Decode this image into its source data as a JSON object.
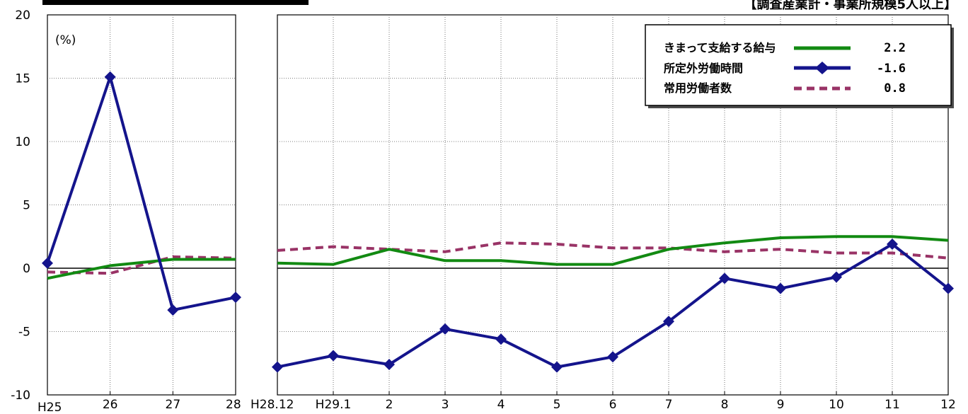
{
  "source_label": "【調査産業計・事業所規模5人以上】",
  "chart_data": {
    "type": "line",
    "unit_label": "(%)",
    "ylim": [
      -10,
      20
    ],
    "yticks": [
      "20",
      "15",
      "10",
      "5",
      "0",
      "-5",
      "-10"
    ],
    "grid": true,
    "legend_position": "top-right",
    "legend_values": [
      "2.2",
      "-1.6",
      "0.8"
    ],
    "colors": {
      "wages": "#128a12",
      "overtime": "#14148c",
      "employees": "#993366"
    },
    "panels": [
      {
        "categories": [
          "H25",
          "26",
          "27",
          "28"
        ],
        "series": [
          {
            "name": "きまって支給する給与",
            "values": [
              -0.8,
              0.2,
              0.7,
              0.7
            ]
          },
          {
            "name": "所定外労働時間",
            "values": [
              0.4,
              15.1,
              -3.3,
              -2.3
            ]
          },
          {
            "name": "常用労働者数",
            "values": [
              -0.3,
              -0.4,
              0.9,
              0.8
            ]
          }
        ]
      },
      {
        "categories": [
          "H28.12",
          "H29.1",
          "2",
          "3",
          "4",
          "5",
          "6",
          "7",
          "8",
          "9",
          "10",
          "11",
          "12"
        ],
        "series": [
          {
            "name": "きまって支給する給与",
            "values": [
              0.4,
              0.3,
              1.5,
              0.6,
              0.6,
              0.3,
              0.3,
              1.5,
              2.0,
              2.4,
              2.5,
              2.5,
              2.2
            ]
          },
          {
            "name": "所定外労働時間",
            "values": [
              -7.8,
              -6.9,
              -7.6,
              -4.8,
              -5.6,
              -7.8,
              -7.0,
              -4.2,
              -0.8,
              -1.6,
              -0.7,
              1.9,
              -1.6
            ]
          },
          {
            "name": "常用労働者数",
            "values": [
              1.4,
              1.7,
              1.5,
              1.3,
              2.0,
              1.9,
              1.6,
              1.6,
              1.3,
              1.5,
              1.2,
              1.2,
              0.8
            ]
          }
        ]
      }
    ]
  }
}
